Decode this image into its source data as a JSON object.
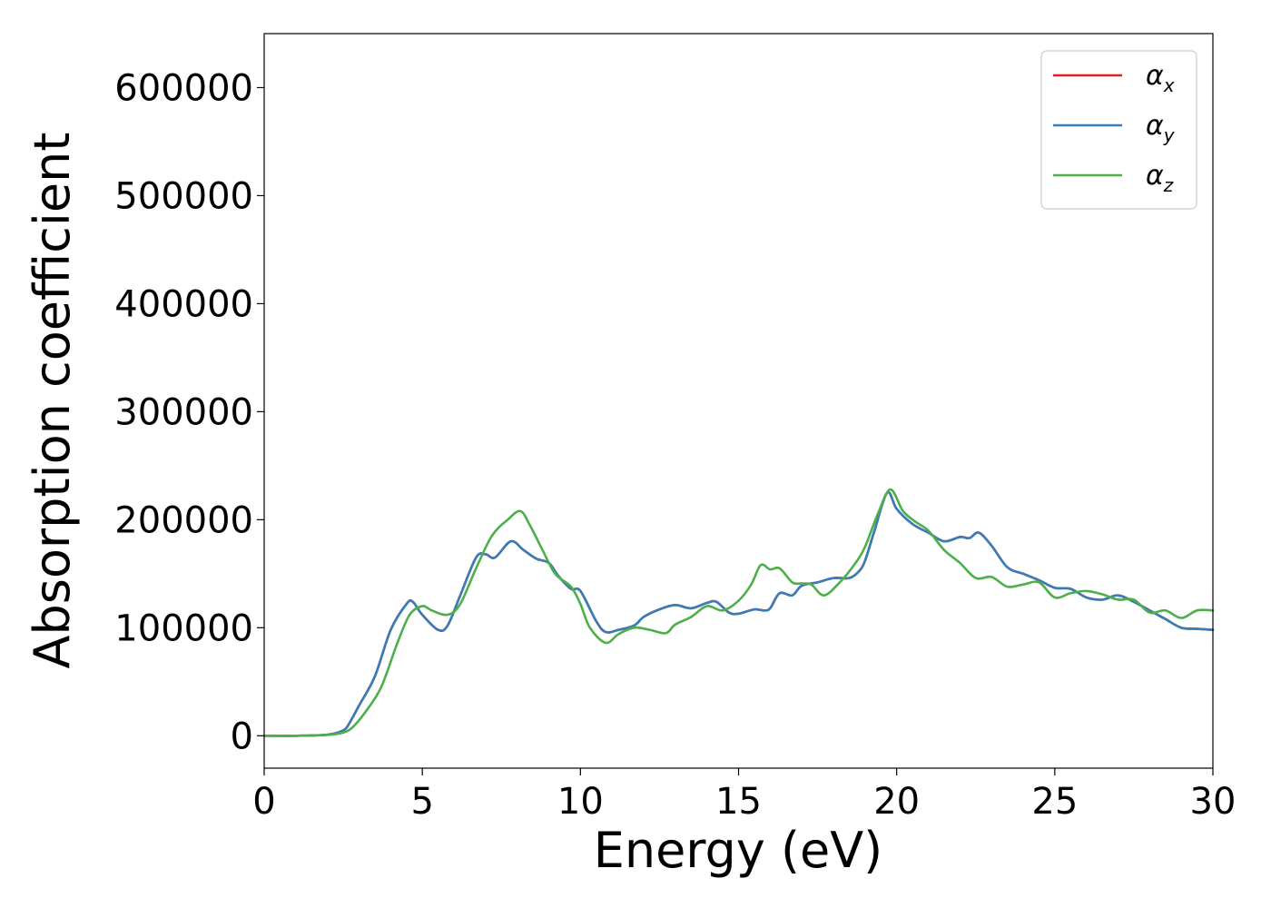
{
  "chart_data": {
    "type": "line",
    "xlabel": "Energy (eV)",
    "ylabel": "Absorption coefficient",
    "xlim": [
      0,
      30
    ],
    "ylim": [
      -30000,
      650000
    ],
    "xticks": [
      0,
      5,
      10,
      15,
      20,
      25,
      30
    ],
    "xtick_labels": [
      "0",
      "5",
      "10",
      "15",
      "20",
      "25",
      "30"
    ],
    "yticks": [
      0,
      100000,
      200000,
      300000,
      400000,
      500000,
      600000
    ],
    "ytick_labels": [
      "0",
      "100000",
      "200000",
      "300000",
      "400000",
      "500000",
      "600000"
    ],
    "grid": false,
    "legend_position": "top-right",
    "series": [
      {
        "name": "α",
        "name_sub": "x",
        "color": "#e41a1c",
        "x": [
          0,
          1,
          2,
          2.5,
          2.7,
          3.0,
          3.5,
          4.0,
          4.5,
          4.7,
          5.0,
          5.5,
          5.8,
          6.2,
          6.7,
          7.0,
          7.3,
          7.8,
          8.2,
          8.6,
          9.0,
          9.3,
          9.7,
          10.0,
          10.5,
          10.8,
          11.2,
          11.7,
          12.0,
          12.5,
          13.0,
          13.5,
          14.0,
          14.3,
          14.7,
          15.0,
          15.5,
          15.8,
          16.0,
          16.3,
          16.7,
          17.0,
          17.5,
          18.0,
          18.5,
          18.8,
          19.0,
          19.3,
          19.7,
          20.0,
          20.5,
          21.0,
          21.5,
          22.0,
          22.3,
          22.6,
          23.0,
          23.5,
          24.0,
          24.5,
          25.0,
          25.5,
          26.0,
          26.5,
          27.0,
          27.5,
          28.0,
          28.5,
          29.0,
          29.5,
          30.0
        ],
        "values": [
          0,
          0,
          1000,
          5000,
          12000,
          28000,
          55000,
          98000,
          122000,
          124000,
          112000,
          98000,
          102000,
          130000,
          165000,
          168000,
          165000,
          180000,
          172000,
          164000,
          160000,
          148000,
          136000,
          134000,
          106000,
          96000,
          98000,
          102000,
          110000,
          117000,
          121000,
          118000,
          123000,
          124000,
          114000,
          113000,
          117000,
          116000,
          118000,
          132000,
          130000,
          139000,
          142000,
          146000,
          146000,
          152000,
          162000,
          190000,
          225000,
          210000,
          196000,
          188000,
          180000,
          184000,
          183000,
          188000,
          176000,
          156000,
          150000,
          144000,
          137000,
          136000,
          128000,
          126000,
          130000,
          124000,
          116000,
          108000,
          100000,
          99000,
          98000
        ]
      },
      {
        "name": "α",
        "name_sub": "y",
        "color": "#377eb8",
        "x": [
          0,
          1,
          2,
          2.5,
          2.7,
          3.0,
          3.5,
          4.0,
          4.5,
          4.7,
          5.0,
          5.5,
          5.8,
          6.2,
          6.7,
          7.0,
          7.3,
          7.8,
          8.2,
          8.6,
          9.0,
          9.3,
          9.7,
          10.0,
          10.5,
          10.8,
          11.2,
          11.7,
          12.0,
          12.5,
          13.0,
          13.5,
          14.0,
          14.3,
          14.7,
          15.0,
          15.5,
          15.8,
          16.0,
          16.3,
          16.7,
          17.0,
          17.5,
          18.0,
          18.5,
          18.8,
          19.0,
          19.3,
          19.7,
          20.0,
          20.5,
          21.0,
          21.5,
          22.0,
          22.3,
          22.6,
          23.0,
          23.5,
          24.0,
          24.5,
          25.0,
          25.5,
          26.0,
          26.5,
          27.0,
          27.5,
          28.0,
          28.5,
          29.0,
          29.5,
          30.0
        ],
        "values": [
          0,
          0,
          1000,
          5000,
          12000,
          28000,
          55000,
          98000,
          122000,
          124000,
          112000,
          98000,
          102000,
          130000,
          165000,
          168000,
          165000,
          180000,
          172000,
          164000,
          160000,
          148000,
          136000,
          134000,
          106000,
          96000,
          98000,
          102000,
          110000,
          117000,
          121000,
          118000,
          123000,
          124000,
          114000,
          113000,
          117000,
          116000,
          118000,
          132000,
          130000,
          139000,
          142000,
          146000,
          146000,
          152000,
          162000,
          190000,
          225000,
          210000,
          196000,
          188000,
          180000,
          184000,
          183000,
          188000,
          176000,
          156000,
          150000,
          144000,
          137000,
          136000,
          128000,
          126000,
          130000,
          124000,
          116000,
          108000,
          100000,
          99000,
          98000
        ]
      },
      {
        "name": "α",
        "name_sub": "z",
        "color": "#4daf4a",
        "x": [
          0,
          1,
          2,
          2.5,
          2.8,
          3.2,
          3.7,
          4.2,
          4.6,
          5.0,
          5.3,
          5.8,
          6.2,
          6.7,
          7.2,
          7.7,
          8.1,
          8.4,
          8.8,
          9.2,
          9.7,
          10.0,
          10.3,
          10.8,
          11.2,
          11.7,
          12.2,
          12.7,
          13.0,
          13.5,
          14.0,
          14.5,
          15.0,
          15.4,
          15.7,
          16.0,
          16.3,
          16.7,
          17.0,
          17.3,
          17.7,
          18.2,
          18.7,
          19.0,
          19.4,
          19.8,
          20.2,
          20.6,
          21.0,
          21.5,
          22.0,
          22.5,
          23.0,
          23.5,
          24.0,
          24.5,
          25.0,
          25.5,
          26.0,
          26.5,
          27.0,
          27.5,
          28.0,
          28.5,
          29.0,
          29.5,
          30.0
        ],
        "values": [
          0,
          0,
          800,
          3000,
          8000,
          22000,
          45000,
          85000,
          112000,
          120000,
          116000,
          112000,
          122000,
          155000,
          185000,
          200000,
          208000,
          195000,
          172000,
          150000,
          138000,
          122000,
          100000,
          86000,
          94000,
          100000,
          98000,
          95000,
          103000,
          110000,
          120000,
          116000,
          125000,
          140000,
          158000,
          154000,
          155000,
          142000,
          141000,
          140000,
          130000,
          142000,
          160000,
          175000,
          205000,
          228000,
          208000,
          198000,
          190000,
          172000,
          160000,
          146000,
          147000,
          138000,
          140000,
          142000,
          128000,
          132000,
          134000,
          131000,
          126000,
          126000,
          114000,
          116000,
          109000,
          116000,
          116000
        ]
      }
    ]
  }
}
